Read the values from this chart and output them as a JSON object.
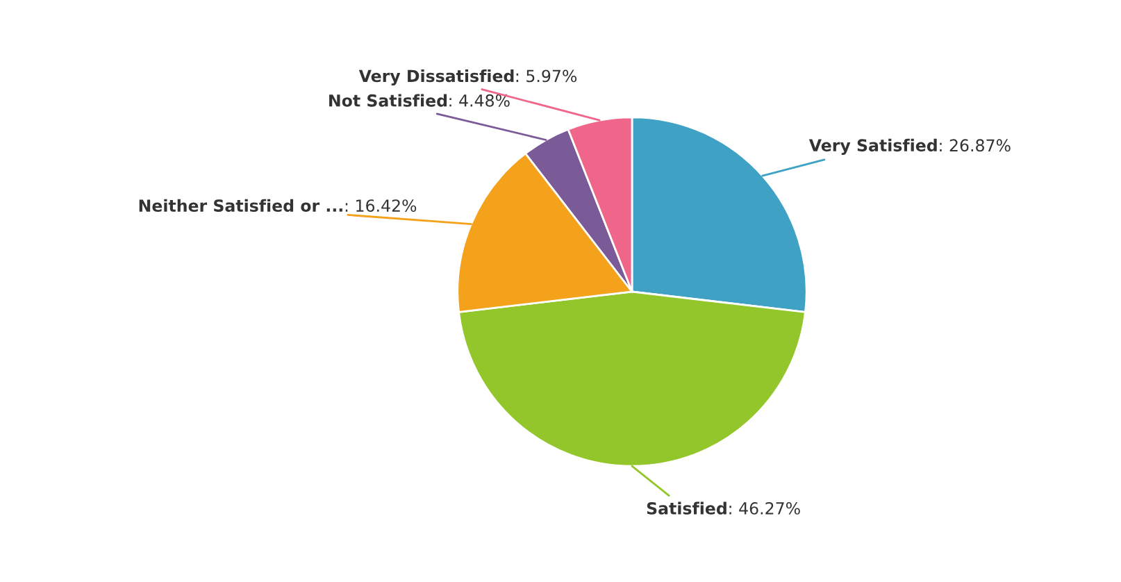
{
  "chart_data": {
    "type": "pie",
    "categories": [
      "Very Satisfied",
      "Satisfied",
      "Neither Satisfied or ...",
      "Not Satisfied",
      "Very Dissatisfied"
    ],
    "values": [
      26.87,
      46.27,
      16.42,
      4.48,
      5.97
    ],
    "colors": [
      "#3fa1c4",
      "#93c62a",
      "#f4a11c",
      "#7b5a98",
      "#f0668a"
    ],
    "value_labels": [
      ": 26.87%",
      ": 46.27%",
      ": 16.42%",
      ": 4.48%",
      ": 5.97%"
    ],
    "legend": false
  }
}
